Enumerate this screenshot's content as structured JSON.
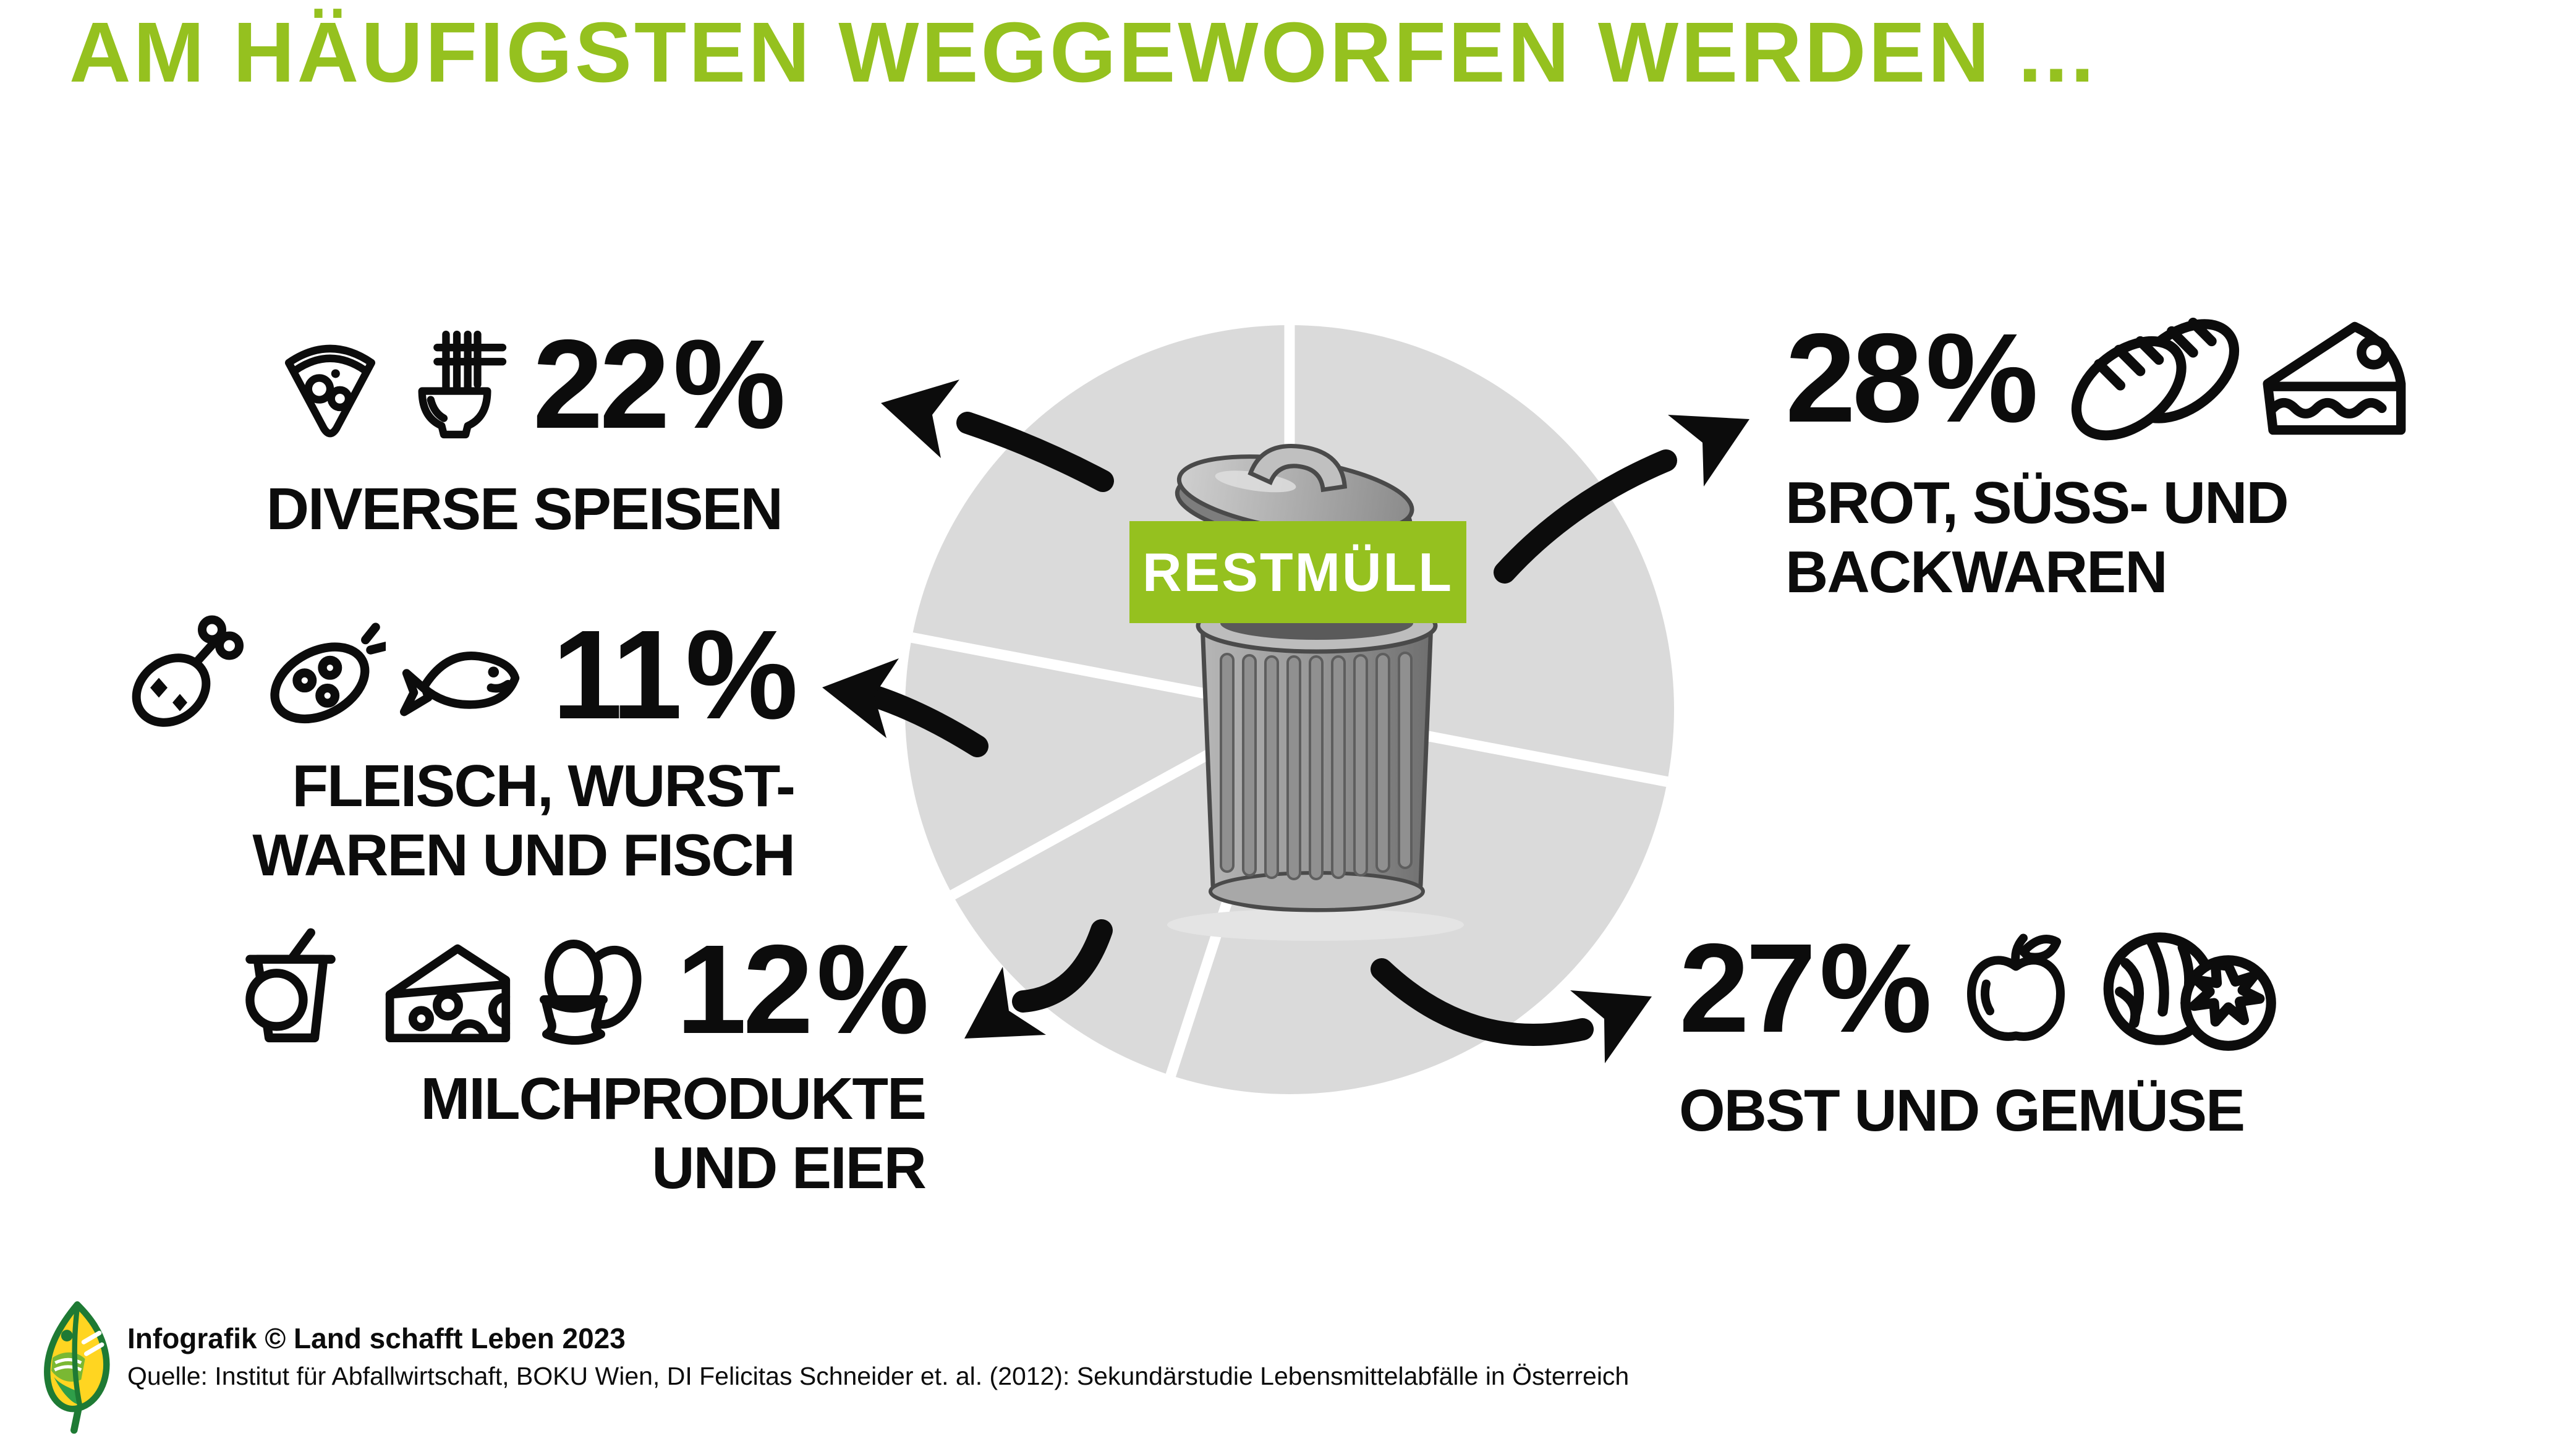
{
  "title": "AM HÄUFIGSTEN WEGGEWORFEN WERDEN ...",
  "colors": {
    "green": "#95c11f",
    "pie_gray": "#dadada",
    "ink_black": "#0c0c0c",
    "divider_white": "#ffffff"
  },
  "chart_data": {
    "type": "pie",
    "title": "AM HÄUFIGSTEN WEGGEWORFEN WERDEN ...",
    "center_label": "RESTMÜLL",
    "unit": "%",
    "direction": "clockwise",
    "start_angle_deg": 0,
    "legend_position": "around",
    "grid": false,
    "slices": [
      {
        "label": "BROT, SÜSS- UND BACKWAREN",
        "value": 28,
        "icons": [
          "bread-loaves-icon",
          "cake-slice-icon"
        ]
      },
      {
        "label": "OBST UND GEMÜSE",
        "value": 27,
        "icons": [
          "apple-icon",
          "cabbage-icon",
          "tomato-icon"
        ]
      },
      {
        "label": "MILCHPRODUKTE UND EIER",
        "value": 12,
        "icons": [
          "yogurt-cup-icon",
          "cheese-icon",
          "eggs-icon"
        ]
      },
      {
        "label": "FLEISCH, WURSTWAREN UND FISCH",
        "value": 11,
        "icons": [
          "drumstick-icon",
          "sausage-icon",
          "fish-icon"
        ]
      },
      {
        "label": "DIVERSE SPEISEN",
        "value": 22,
        "icons": [
          "pizza-icon",
          "noodle-bowl-icon"
        ]
      }
    ]
  },
  "labels": {
    "diverse": {
      "value": "22 %",
      "line1": "DIVERSE SPEISEN"
    },
    "brot": {
      "value": "28 %",
      "line1": "BROT, SÜSS- UND",
      "line2": "BACKWAREN"
    },
    "fleisch": {
      "value": "11 %",
      "line1": "FLEISCH, WURST-",
      "line2": "WAREN UND FISCH"
    },
    "milch": {
      "value": "12 %",
      "line1": "MILCHPRODUKTE",
      "line2": "UND EIER"
    },
    "obst": {
      "value": "27 %",
      "line1": "OBST UND GEMÜSE"
    }
  },
  "footer": {
    "credit": "Infografik © Land schafft Leben 2023",
    "source": "Quelle: Institut für Abfallwirtschaft, BOKU Wien, DI Felicitas Schneider et. al. (2012): Sekundärstudie Lebensmittelabfälle in Österreich"
  }
}
